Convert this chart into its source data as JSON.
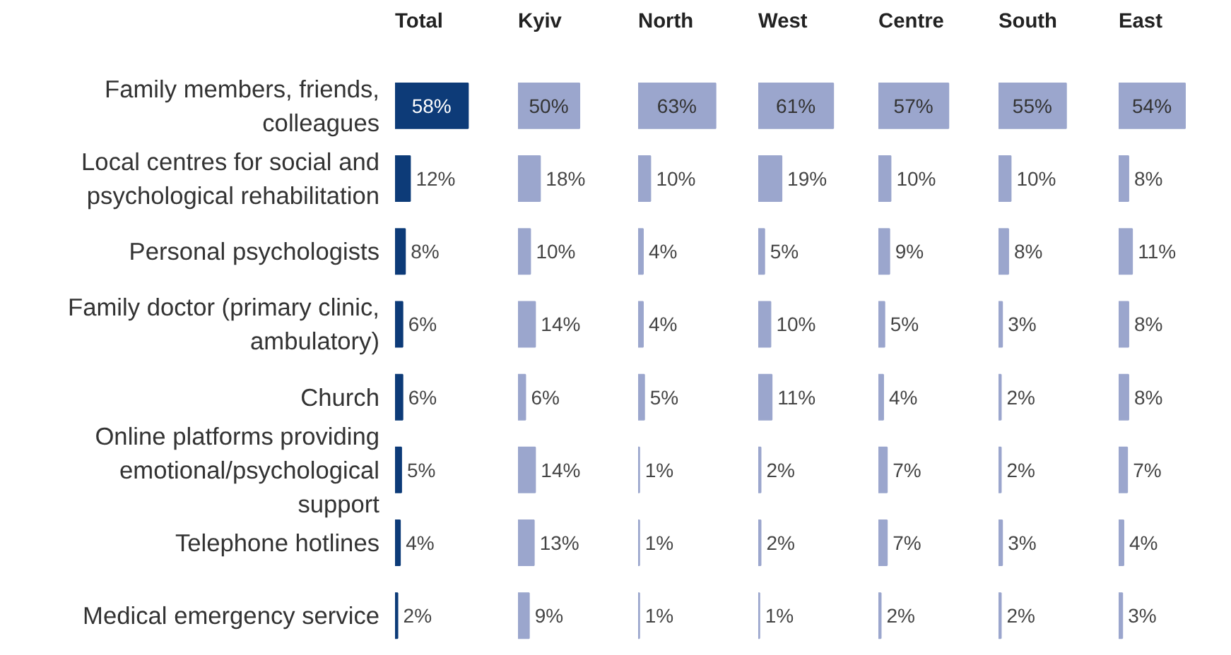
{
  "chart_data": [
    {
      "type": "bar",
      "orientation": "horizontal",
      "title": "Total",
      "tick_labels": "y",
      "color": "#0d3b78",
      "categories": [
        "Family members, friends, colleagues",
        "Local centres for social and psychological rehabilitation",
        "Personal psychologists",
        "Family doctor (primary clinic, ambulatory)",
        "Church",
        "Online platforms providing emotional/psychological support",
        "Telephone hotlines",
        "Medical emergency service"
      ],
      "values": [
        58,
        12,
        8,
        6,
        6,
        5,
        4,
        2
      ],
      "value_labels": [
        "58%",
        "12%",
        "8%",
        "6%",
        "6%",
        "5%",
        "4%",
        "2%"
      ]
    },
    {
      "type": "bar",
      "orientation": "horizontal",
      "title": "Kyiv",
      "tick_labels": false,
      "color": "#9ba6cd",
      "values": [
        50,
        18,
        10,
        14,
        6,
        14,
        13,
        9
      ],
      "value_labels": [
        "50%",
        "18%",
        "10%",
        "14%",
        "6%",
        "14%",
        "13%",
        "9%"
      ]
    },
    {
      "type": "bar",
      "orientation": "horizontal",
      "title": "North",
      "tick_labels": false,
      "color": "#9ba6cd",
      "values": [
        63,
        10,
        4,
        4,
        5,
        1,
        1,
        1
      ],
      "value_labels": [
        "63%",
        "10%",
        "4%",
        "4%",
        "5%",
        "1%",
        "1%",
        "1%"
      ]
    },
    {
      "type": "bar",
      "orientation": "horizontal",
      "title": "West",
      "tick_labels": false,
      "color": "#9ba6cd",
      "values": [
        61,
        19,
        5,
        10,
        11,
        2,
        2,
        1
      ],
      "value_labels": [
        "61%",
        "19%",
        "5%",
        "10%",
        "11%",
        "2%",
        "2%",
        "1%"
      ]
    },
    {
      "type": "bar",
      "orientation": "horizontal",
      "title": "Centre",
      "tick_labels": false,
      "color": "#9ba6cd",
      "values": [
        57,
        10,
        9,
        5,
        4,
        7,
        7,
        2
      ],
      "value_labels": [
        "57%",
        "10%",
        "9%",
        "5%",
        "4%",
        "7%",
        "7%",
        "2%"
      ]
    },
    {
      "type": "bar",
      "orientation": "horizontal",
      "title": "South",
      "tick_labels": false,
      "color": "#9ba6cd",
      "values": [
        55,
        10,
        8,
        3,
        2,
        2,
        3,
        2
      ],
      "value_labels": [
        "55%",
        "10%",
        "8%",
        "3%",
        "2%",
        "2%",
        "3%",
        "2%"
      ]
    },
    {
      "type": "bar",
      "orientation": "horizontal",
      "title": "East",
      "tick_labels": false,
      "color": "#9ba6cd",
      "values": [
        54,
        8,
        11,
        8,
        8,
        7,
        4,
        3
      ],
      "value_labels": [
        "54%",
        "8%",
        "11%",
        "8%",
        "8%",
        "7%",
        "4%",
        "3%"
      ]
    }
  ]
}
